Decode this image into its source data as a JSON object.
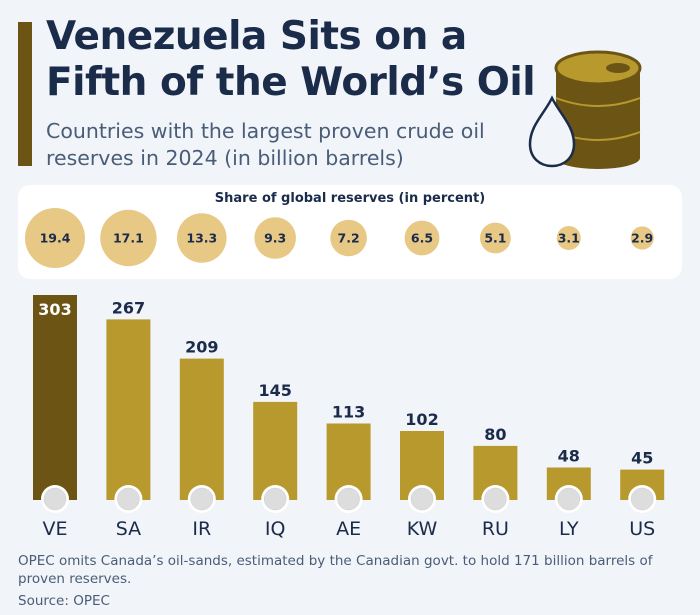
{
  "header": {
    "title": "Venezuela Sits on a Fifth of the World’s Oil",
    "subtitle": "Countries with the largest proven crude oil reserves in 2024 (in billion barrels)"
  },
  "share_panel": {
    "title": "Share of global reserves (in percent)"
  },
  "footer": {
    "note": "OPEC omits Canada’s oil-sands, estimated by the Canadian govt. to hold 171 billion barrels of proven reserves.",
    "source": "Source: OPEC"
  },
  "colors": {
    "title": "#1b2b4a",
    "text": "#4a5d78",
    "bar": "#b8992e",
    "bar_highlight": "#6b5414",
    "share_bubble": "#e8c885",
    "accent": "#6b5414"
  },
  "icons": [
    "barrel-icon",
    "oil-drop-icon",
    "flag-icons"
  ],
  "chart_data": {
    "type": "bar",
    "categories": [
      "VE",
      "SA",
      "IR",
      "IQ",
      "AE",
      "KW",
      "RU",
      "LY",
      "US"
    ],
    "values": [
      303,
      267,
      209,
      145,
      113,
      102,
      80,
      48,
      45
    ],
    "share_percent": [
      19.4,
      17.1,
      13.3,
      9.3,
      7.2,
      6.5,
      5.1,
      3.1,
      2.9
    ],
    "share_labels": [
      "19.4",
      "17.1",
      "13.3",
      "9.3",
      "7.2",
      "6.5",
      "5.1",
      "3.1",
      "2.9"
    ],
    "highlight": "VE",
    "ylim": [
      0,
      303
    ],
    "title": "",
    "xlabel": "",
    "ylabel": ""
  }
}
